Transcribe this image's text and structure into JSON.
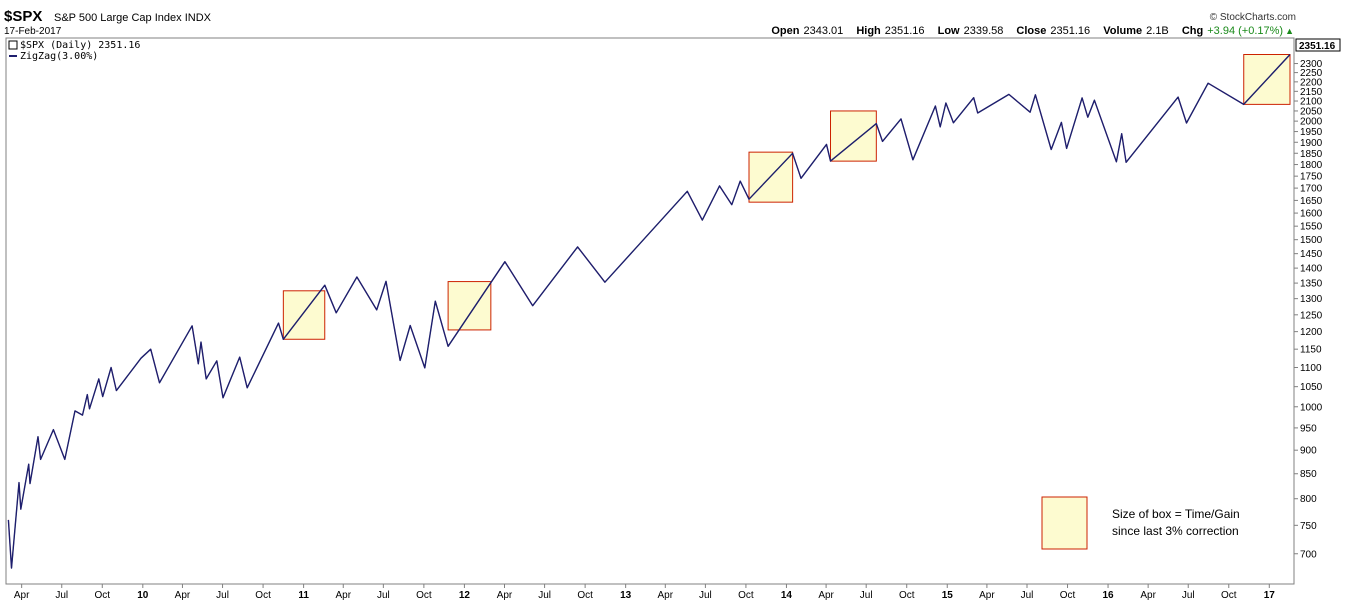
{
  "header": {
    "ticker": "$SPX",
    "name": "S&P 500 Large Cap Index",
    "exchange": "INDX",
    "date": "17-Feb-2017",
    "copyright": "© StockCharts.com",
    "open_label": "Open",
    "open": "2343.01",
    "high_label": "High",
    "high": "2351.16",
    "low_label": "Low",
    "low": "2339.58",
    "close_label": "Close",
    "close": "2351.16",
    "volume_label": "Volume",
    "volume": "2.1B",
    "chg_label": "Chg",
    "chg": "+3.94 (+0.17%)"
  },
  "legend": {
    "price": "$SPX (Daily) 2351.16",
    "zigzag": "ZigZag(3.00%)"
  },
  "last_value_tag": "2351.16",
  "annotation": {
    "line1": "Size of box = Time/Gain",
    "line2": "since last 3% correction"
  },
  "colors": {
    "zigzag": "#1e1e6e",
    "box_fill": "#fdfbd0",
    "box_stroke": "#cc2200",
    "price_up": "#2a9a2a",
    "price_down": "#c83232"
  },
  "chart_data": {
    "type": "line",
    "yscale": "log",
    "ylim": [
      660,
      2400
    ],
    "y_ticks": [
      700,
      750,
      800,
      850,
      900,
      950,
      1000,
      1050,
      1100,
      1150,
      1200,
      1250,
      1300,
      1350,
      1400,
      1450,
      1500,
      1550,
      1600,
      1650,
      1700,
      1750,
      1800,
      1850,
      1900,
      1950,
      2000,
      2050,
      2100,
      2150,
      2200,
      2250,
      2300
    ],
    "x_range": [
      "2009-03-01",
      "2017-02-17"
    ],
    "x_ticks": [
      {
        "label": "Apr",
        "date": "2009-04-01",
        "year": false
      },
      {
        "label": "Jul",
        "date": "2009-07-01",
        "year": false
      },
      {
        "label": "Oct",
        "date": "2009-10-01",
        "year": false
      },
      {
        "label": "10",
        "date": "2010-01-01",
        "year": true
      },
      {
        "label": "Apr",
        "date": "2010-04-01",
        "year": false
      },
      {
        "label": "Jul",
        "date": "2010-07-01",
        "year": false
      },
      {
        "label": "Oct",
        "date": "2010-10-01",
        "year": false
      },
      {
        "label": "11",
        "date": "2011-01-01",
        "year": true
      },
      {
        "label": "Apr",
        "date": "2011-04-01",
        "year": false
      },
      {
        "label": "Jul",
        "date": "2011-07-01",
        "year": false
      },
      {
        "label": "Oct",
        "date": "2011-10-01",
        "year": false
      },
      {
        "label": "12",
        "date": "2012-01-01",
        "year": true
      },
      {
        "label": "Apr",
        "date": "2012-04-01",
        "year": false
      },
      {
        "label": "Jul",
        "date": "2012-07-01",
        "year": false
      },
      {
        "label": "Oct",
        "date": "2012-10-01",
        "year": false
      },
      {
        "label": "13",
        "date": "2013-01-01",
        "year": true
      },
      {
        "label": "Apr",
        "date": "2013-04-01",
        "year": false
      },
      {
        "label": "Jul",
        "date": "2013-07-01",
        "year": false
      },
      {
        "label": "Oct",
        "date": "2013-10-01",
        "year": false
      },
      {
        "label": "14",
        "date": "2014-01-01",
        "year": true
      },
      {
        "label": "Apr",
        "date": "2014-04-01",
        "year": false
      },
      {
        "label": "Jul",
        "date": "2014-07-01",
        "year": false
      },
      {
        "label": "Oct",
        "date": "2014-10-01",
        "year": false
      },
      {
        "label": "15",
        "date": "2015-01-01",
        "year": true
      },
      {
        "label": "Apr",
        "date": "2015-04-01",
        "year": false
      },
      {
        "label": "Jul",
        "date": "2015-07-01",
        "year": false
      },
      {
        "label": "Oct",
        "date": "2015-10-01",
        "year": false
      },
      {
        "label": "16",
        "date": "2016-01-01",
        "year": true
      },
      {
        "label": "Apr",
        "date": "2016-04-01",
        "year": false
      },
      {
        "label": "Jul",
        "date": "2016-07-01",
        "year": false
      },
      {
        "label": "Oct",
        "date": "2016-10-01",
        "year": false
      },
      {
        "label": "17",
        "date": "2017-01-01",
        "year": true
      }
    ],
    "series": [
      {
        "name": "$SPX (Daily) 2351.16",
        "points": [
          [
            "2009-03-02",
            760
          ],
          [
            "2009-03-09",
            676
          ],
          [
            "2009-03-26",
            832
          ],
          [
            "2009-03-30",
            780
          ],
          [
            "2009-04-17",
            870
          ],
          [
            "2009-04-20",
            830
          ],
          [
            "2009-05-08",
            930
          ],
          [
            "2009-05-14",
            880
          ],
          [
            "2009-06-12",
            946
          ],
          [
            "2009-07-08",
            880
          ],
          [
            "2009-07-31",
            990
          ],
          [
            "2009-08-17",
            980
          ],
          [
            "2009-08-28",
            1030
          ],
          [
            "2009-09-02",
            995
          ],
          [
            "2009-09-23",
            1070
          ],
          [
            "2009-10-02",
            1025
          ],
          [
            "2009-10-21",
            1100
          ],
          [
            "2009-11-02",
            1040
          ],
          [
            "2009-12-28",
            1125
          ],
          [
            "2010-01-19",
            1150
          ],
          [
            "2010-02-08",
            1060
          ],
          [
            "2010-04-23",
            1217
          ],
          [
            "2010-05-07",
            1110
          ],
          [
            "2010-05-13",
            1170
          ],
          [
            "2010-05-25",
            1070
          ],
          [
            "2010-06-18",
            1118
          ],
          [
            "2010-07-02",
            1022
          ],
          [
            "2010-08-09",
            1128
          ],
          [
            "2010-08-26",
            1047
          ],
          [
            "2010-11-05",
            1225
          ],
          [
            "2010-11-16",
            1178
          ],
          [
            "2011-02-18",
            1343
          ],
          [
            "2011-03-16",
            1256
          ],
          [
            "2011-05-02",
            1370
          ],
          [
            "2011-06-16",
            1265
          ],
          [
            "2011-07-07",
            1356
          ],
          [
            "2011-08-08",
            1119
          ],
          [
            "2011-08-31",
            1218
          ],
          [
            "2011-10-03",
            1099
          ],
          [
            "2011-10-27",
            1292
          ],
          [
            "2011-11-25",
            1158
          ],
          [
            "2012-04-02",
            1422
          ],
          [
            "2012-06-04",
            1278
          ],
          [
            "2012-09-14",
            1474
          ],
          [
            "2012-11-15",
            1353
          ],
          [
            "2013-05-21",
            1687
          ],
          [
            "2013-06-24",
            1573
          ],
          [
            "2013-08-02",
            1709
          ],
          [
            "2013-08-30",
            1633
          ],
          [
            "2013-09-18",
            1729
          ],
          [
            "2013-10-08",
            1655
          ],
          [
            "2014-01-15",
            1850
          ],
          [
            "2014-02-03",
            1741
          ],
          [
            "2014-04-02",
            1890
          ],
          [
            "2014-04-11",
            1815
          ],
          [
            "2014-07-24",
            1988
          ],
          [
            "2014-08-07",
            1904
          ],
          [
            "2014-09-18",
            2011
          ],
          [
            "2014-10-15",
            1821
          ],
          [
            "2014-12-05",
            2075
          ],
          [
            "2014-12-16",
            1972
          ],
          [
            "2014-12-29",
            2090
          ],
          [
            "2015-01-15",
            1992
          ],
          [
            "2015-03-02",
            2117
          ],
          [
            "2015-03-11",
            2040
          ],
          [
            "2015-05-21",
            2134
          ],
          [
            "2015-07-08",
            2044
          ],
          [
            "2015-07-20",
            2132
          ],
          [
            "2015-08-25",
            1867
          ],
          [
            "2015-09-17",
            1994
          ],
          [
            "2015-09-29",
            1872
          ],
          [
            "2015-11-03",
            2116
          ],
          [
            "2015-11-16",
            2019
          ],
          [
            "2015-12-01",
            2104
          ],
          [
            "2016-01-20",
            1812
          ],
          [
            "2016-02-01",
            1940
          ],
          [
            "2016-02-11",
            1810
          ],
          [
            "2016-06-08",
            2120
          ],
          [
            "2016-06-27",
            1991
          ],
          [
            "2016-08-15",
            2193
          ],
          [
            "2016-11-04",
            2083
          ],
          [
            "2017-02-17",
            2351
          ]
        ]
      },
      {
        "name": "ZigZag(3.00%)",
        "points": [
          [
            "2009-03-02",
            760
          ],
          [
            "2009-03-09",
            676
          ],
          [
            "2009-03-26",
            832
          ],
          [
            "2009-03-30",
            780
          ],
          [
            "2009-04-17",
            870
          ],
          [
            "2009-04-20",
            830
          ],
          [
            "2009-05-08",
            930
          ],
          [
            "2009-05-14",
            880
          ],
          [
            "2009-06-12",
            946
          ],
          [
            "2009-07-08",
            880
          ],
          [
            "2009-07-31",
            990
          ],
          [
            "2009-08-17",
            980
          ],
          [
            "2009-08-28",
            1030
          ],
          [
            "2009-09-02",
            995
          ],
          [
            "2009-09-23",
            1070
          ],
          [
            "2009-10-02",
            1025
          ],
          [
            "2009-10-21",
            1100
          ],
          [
            "2009-11-02",
            1040
          ],
          [
            "2009-12-28",
            1125
          ],
          [
            "2010-01-19",
            1150
          ],
          [
            "2010-02-08",
            1060
          ],
          [
            "2010-04-23",
            1217
          ],
          [
            "2010-05-07",
            1110
          ],
          [
            "2010-05-13",
            1170
          ],
          [
            "2010-05-25",
            1070
          ],
          [
            "2010-06-18",
            1118
          ],
          [
            "2010-07-02",
            1022
          ],
          [
            "2010-08-09",
            1128
          ],
          [
            "2010-08-26",
            1047
          ],
          [
            "2010-11-05",
            1225
          ],
          [
            "2010-11-16",
            1178
          ],
          [
            "2011-02-18",
            1343
          ],
          [
            "2011-03-16",
            1256
          ],
          [
            "2011-05-02",
            1370
          ],
          [
            "2011-06-16",
            1265
          ],
          [
            "2011-07-07",
            1356
          ],
          [
            "2011-08-08",
            1119
          ],
          [
            "2011-08-31",
            1218
          ],
          [
            "2011-10-03",
            1099
          ],
          [
            "2011-10-27",
            1292
          ],
          [
            "2011-11-25",
            1158
          ],
          [
            "2012-04-02",
            1422
          ],
          [
            "2012-06-04",
            1278
          ],
          [
            "2012-09-14",
            1474
          ],
          [
            "2012-11-15",
            1353
          ],
          [
            "2013-05-21",
            1687
          ],
          [
            "2013-06-24",
            1573
          ],
          [
            "2013-08-02",
            1709
          ],
          [
            "2013-08-30",
            1633
          ],
          [
            "2013-09-18",
            1729
          ],
          [
            "2013-10-08",
            1655
          ],
          [
            "2014-01-15",
            1850
          ],
          [
            "2014-02-03",
            1741
          ],
          [
            "2014-04-02",
            1890
          ],
          [
            "2014-04-11",
            1815
          ],
          [
            "2014-07-24",
            1988
          ],
          [
            "2014-08-07",
            1904
          ],
          [
            "2014-09-18",
            2011
          ],
          [
            "2014-10-15",
            1821
          ],
          [
            "2014-12-05",
            2075
          ],
          [
            "2014-12-16",
            1972
          ],
          [
            "2014-12-29",
            2090
          ],
          [
            "2015-01-15",
            1992
          ],
          [
            "2015-03-02",
            2117
          ],
          [
            "2015-03-11",
            2040
          ],
          [
            "2015-05-21",
            2134
          ],
          [
            "2015-07-08",
            2044
          ],
          [
            "2015-07-20",
            2132
          ],
          [
            "2015-08-25",
            1867
          ],
          [
            "2015-09-17",
            1994
          ],
          [
            "2015-09-29",
            1872
          ],
          [
            "2015-11-03",
            2116
          ],
          [
            "2015-11-16",
            2019
          ],
          [
            "2015-12-01",
            2104
          ],
          [
            "2016-01-20",
            1812
          ],
          [
            "2016-02-01",
            1940
          ],
          [
            "2016-02-11",
            1810
          ],
          [
            "2016-06-08",
            2120
          ],
          [
            "2016-06-27",
            1991
          ],
          [
            "2016-08-15",
            2193
          ],
          [
            "2016-11-04",
            2083
          ],
          [
            "2017-02-17",
            2351
          ]
        ]
      }
    ],
    "boxes": [
      {
        "x0": "2010-11-16",
        "x1": "2011-02-18",
        "y0": 1178,
        "y1": 1325
      },
      {
        "x0": "2011-11-25",
        "x1": "2012-03-01",
        "y0": 1205,
        "y1": 1355
      },
      {
        "x0": "2013-10-08",
        "x1": "2014-01-15",
        "y0": 1643,
        "y1": 1855
      },
      {
        "x0": "2014-04-11",
        "x1": "2014-07-24",
        "y0": 1815,
        "y1": 2050
      },
      {
        "x0": "2016-11-04",
        "x1": "2017-02-17",
        "y0": 2083,
        "y1": 2351
      }
    ]
  }
}
